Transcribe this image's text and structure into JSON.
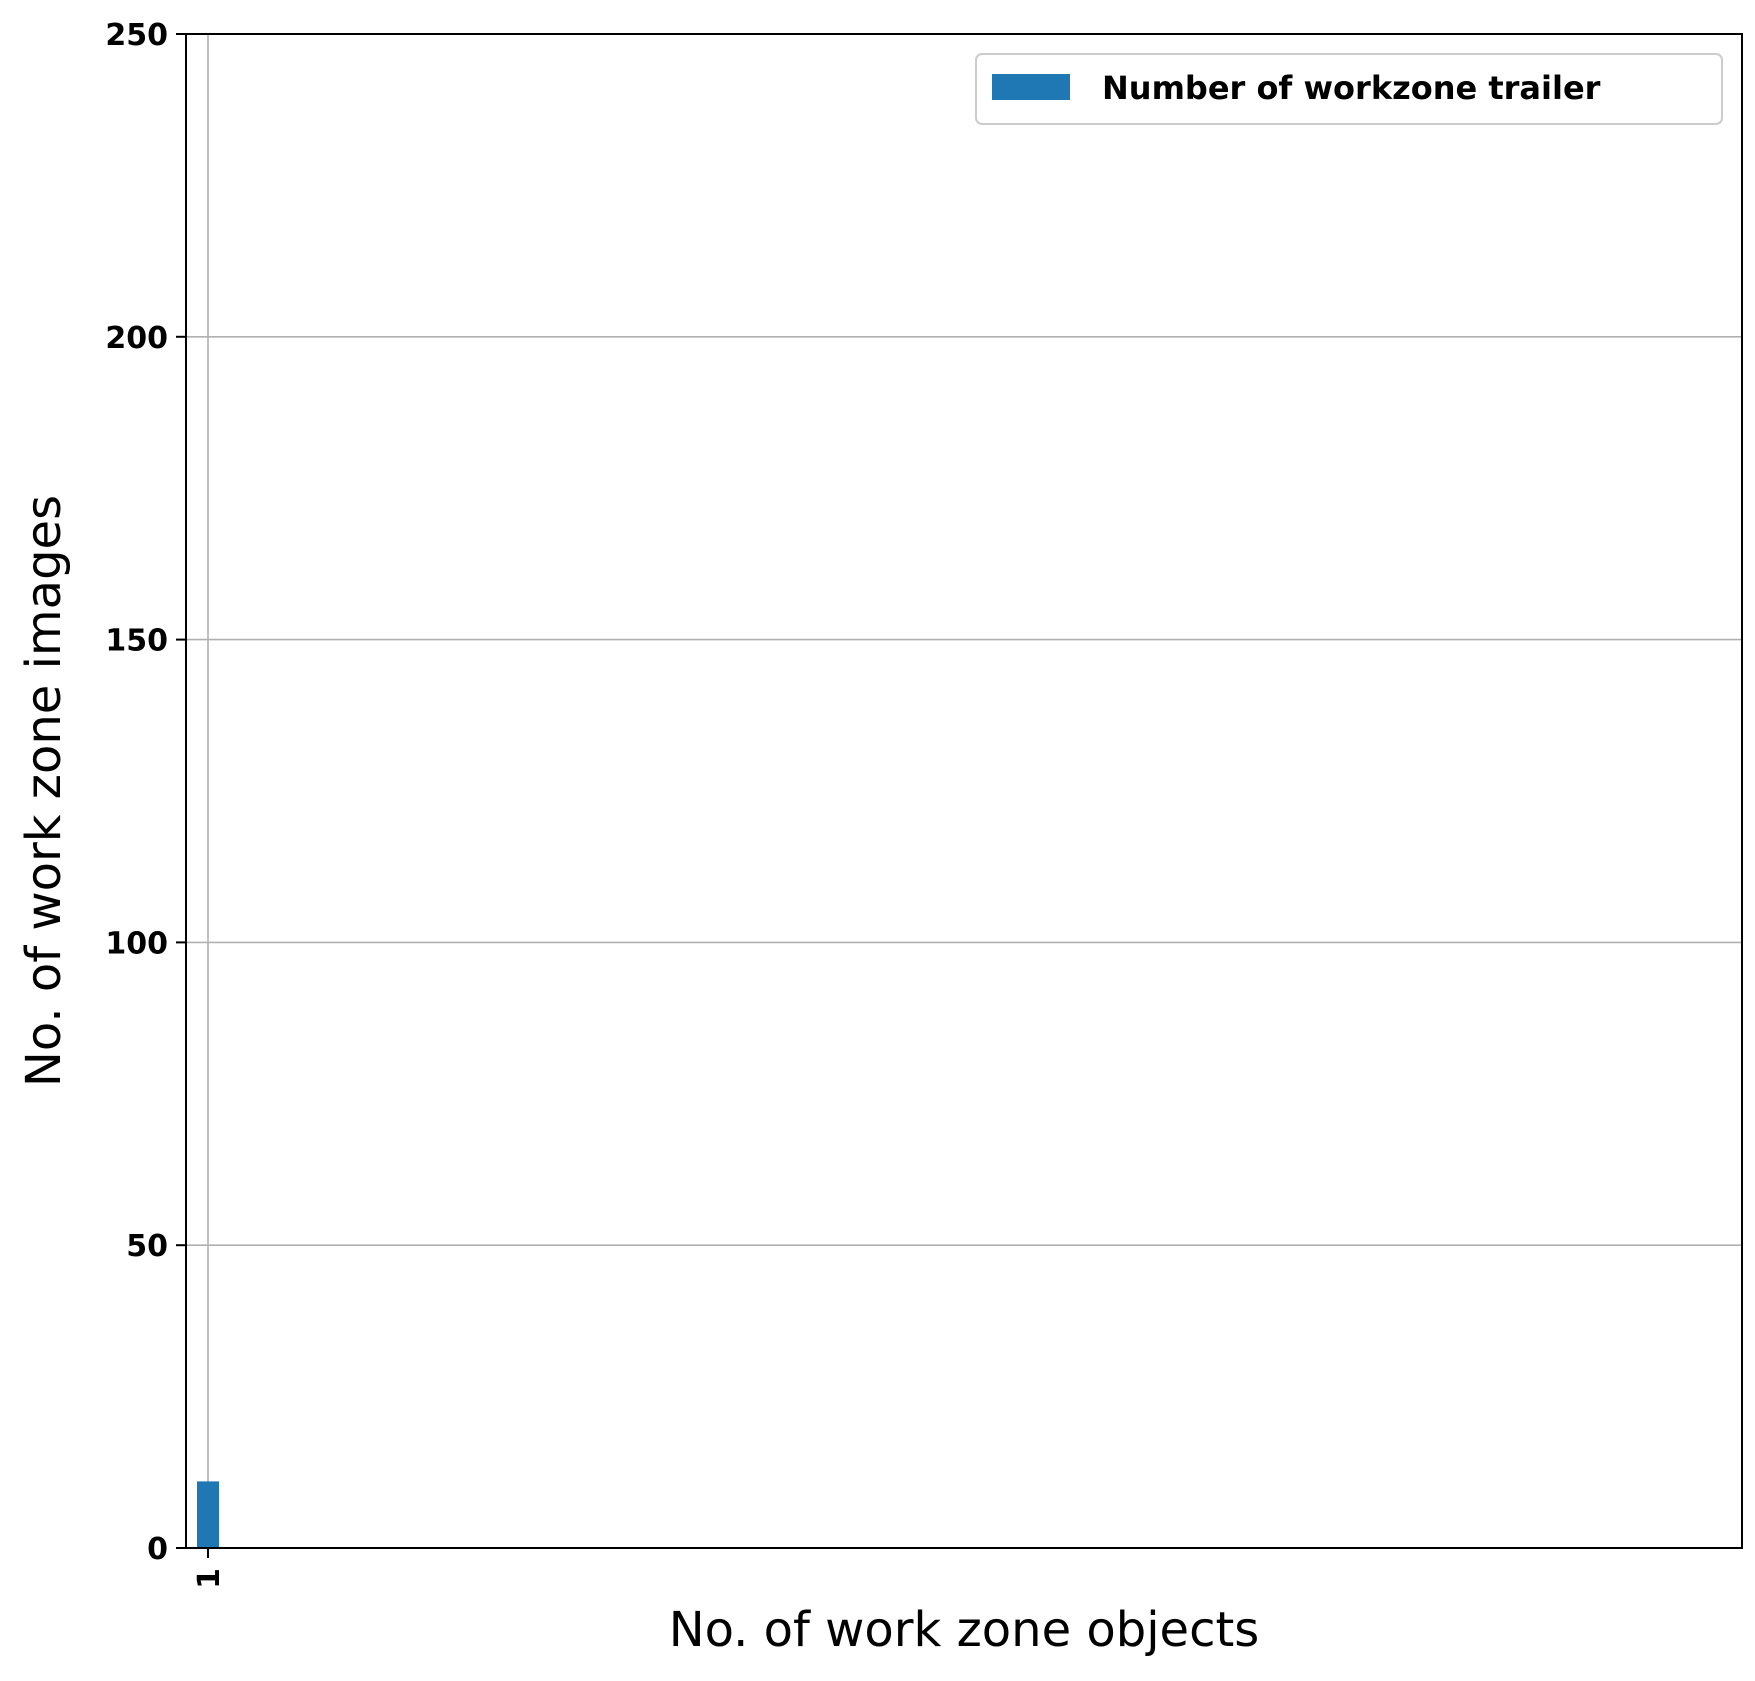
{
  "chart_data": {
    "type": "bar",
    "title": "",
    "xlabel": "No. of work zone objects",
    "ylabel": "No. of work zone images",
    "categories": [
      "1"
    ],
    "series": [
      {
        "name": "Number of workzone trailer",
        "values": [
          11
        ],
        "color": "#1f77b4"
      }
    ],
    "ylim": [
      0,
      250
    ],
    "yticks": [
      0,
      50,
      100,
      150,
      200,
      250
    ],
    "xticks": [
      "1"
    ],
    "grid": true,
    "legend_position": "top-right"
  },
  "colors": {
    "bar": "#1f77b4",
    "grid": "#b0b0b0",
    "axis": "#000000"
  }
}
